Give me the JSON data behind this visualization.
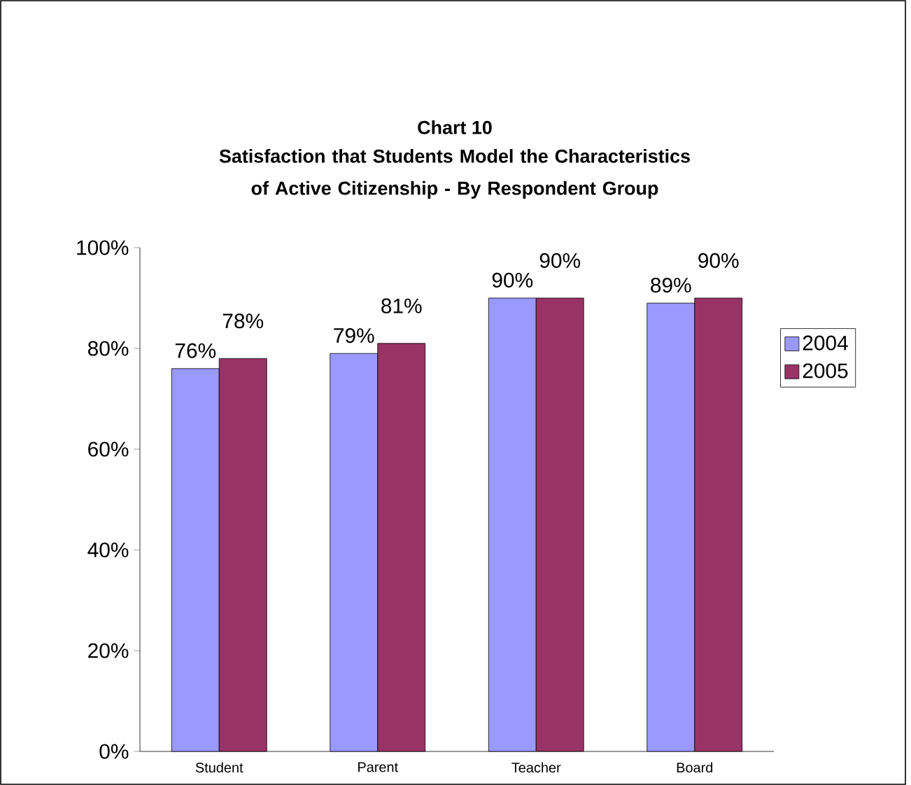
{
  "chart_data": {
    "type": "bar",
    "title": "Chart 10",
    "subtitle": "Satisfaction that Students Model the Characteristics of Active Citizenship - By Respondent Group",
    "categories": [
      "Student",
      "Parent",
      "Teacher",
      "Board"
    ],
    "series": [
      {
        "name": "2004",
        "color": "#9999ff",
        "values": [
          76,
          79,
          90,
          89
        ],
        "value_labels": [
          "76%",
          "79%",
          "90%",
          "89%"
        ]
      },
      {
        "name": "2005",
        "color": "#993366",
        "values": [
          78,
          81,
          90,
          90
        ],
        "value_labels": [
          "78%",
          "81%",
          "90%",
          "90%"
        ]
      }
    ],
    "ylim": [
      0,
      100
    ],
    "yticks": [
      {
        "value": 0,
        "label": "0%"
      },
      {
        "value": 20,
        "label": "20%"
      },
      {
        "value": 40,
        "label": "40%"
      },
      {
        "value": 60,
        "label": "60%"
      },
      {
        "value": 80,
        "label": "80%"
      },
      {
        "value": 100,
        "label": "100%"
      }
    ],
    "legend": "right"
  }
}
